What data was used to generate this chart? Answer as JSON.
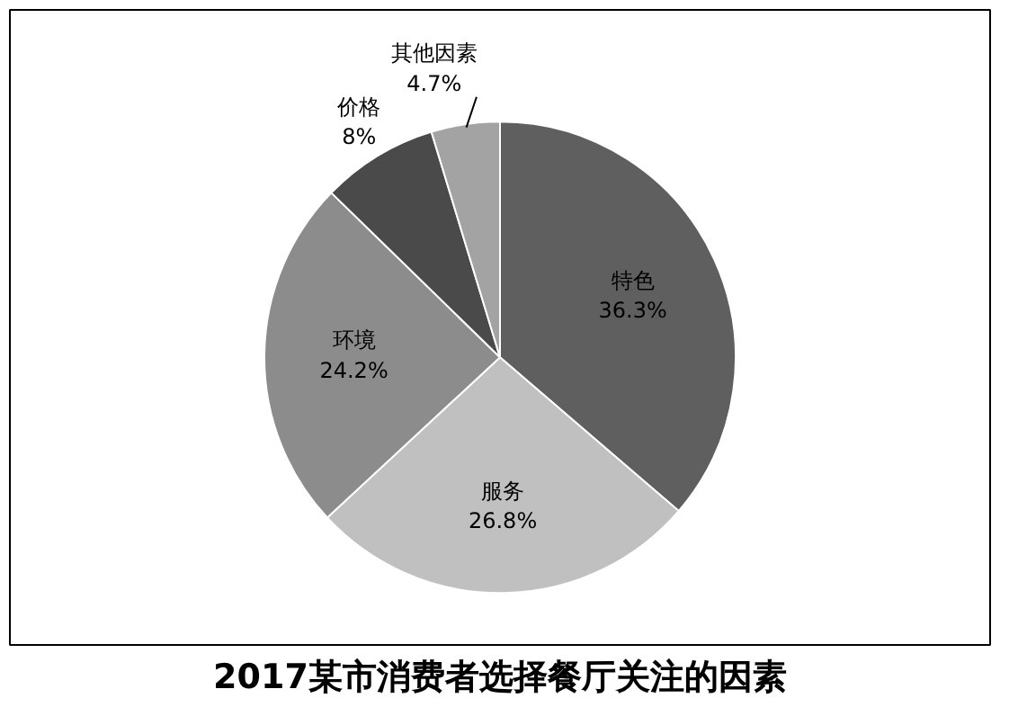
{
  "chart_data": {
    "type": "pie",
    "title": "2017某市消费者选择餐厅关注的因素",
    "categories": [
      "特色",
      "服务",
      "环境",
      "价格",
      "其他因素"
    ],
    "values": [
      36.3,
      26.8,
      24.2,
      8,
      4.7
    ],
    "value_labels": [
      "36.3%",
      "26.8%",
      "24.2%",
      "8%",
      "4.7%"
    ],
    "colors": [
      "#5f5f5f",
      "#c0c0c0",
      "#8c8c8c",
      "#4a4a4a",
      "#a3a3a3"
    ]
  }
}
